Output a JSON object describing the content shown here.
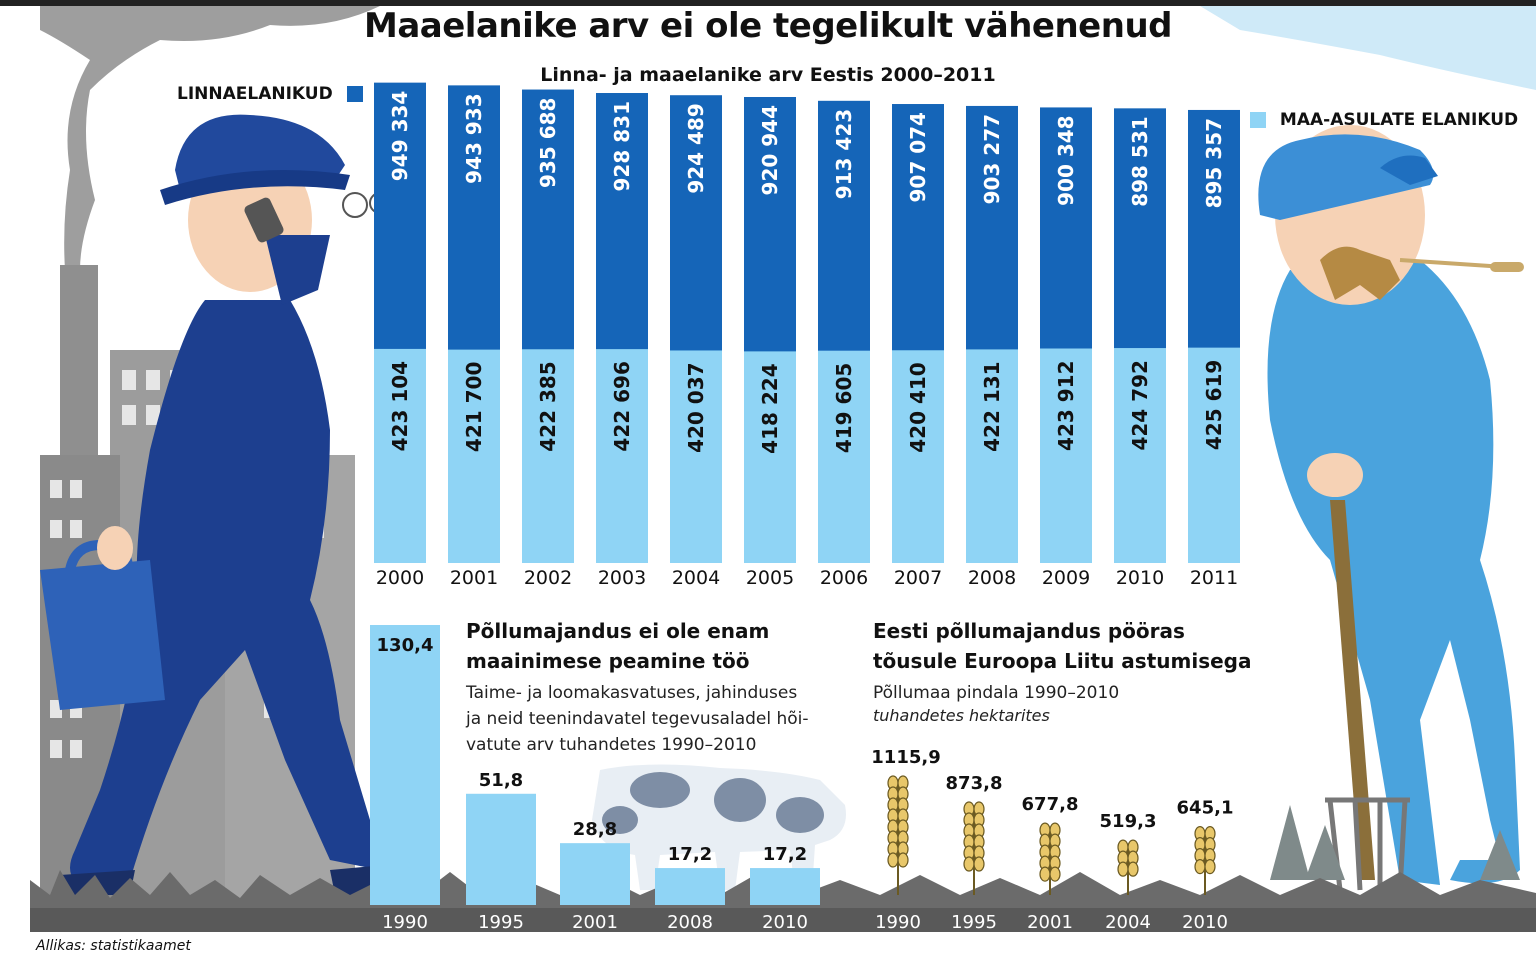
{
  "title": "Maaelanike arv ei ole tegelikult vähenenud",
  "source": "Allikas: statistikaamet",
  "colors": {
    "urban": "#1565b8",
    "rural": "#8fd4f5",
    "bar_small": "#8fd4f5",
    "ink": "#111111"
  },
  "chart_data": [
    {
      "type": "bar",
      "title": "Linna- ja maaelanike arv Eestis 2000–2011",
      "categories": [
        "2000",
        "2001",
        "2002",
        "2003",
        "2004",
        "2005",
        "2006",
        "2007",
        "2008",
        "2009",
        "2010",
        "2011"
      ],
      "series": [
        {
          "name": "LINNAELANIKUD",
          "values": [
            949334,
            943933,
            935688,
            928831,
            924489,
            920944,
            913423,
            907074,
            903277,
            900348,
            898531,
            895357
          ],
          "labels": [
            "949 334",
            "943 933",
            "935 688",
            "928 831",
            "924 489",
            "920 944",
            "913 423",
            "907 074",
            "903 277",
            "900 348",
            "898 531",
            "895 357"
          ]
        },
        {
          "name": "MAA-ASULATE ELANIKUD",
          "values": [
            423104,
            421700,
            422385,
            422696,
            420037,
            418224,
            419605,
            420410,
            422131,
            423912,
            424792,
            425619
          ],
          "labels": [
            "423 104",
            "421 700",
            "422 385",
            "422 696",
            "420 037",
            "418 224",
            "419 605",
            "420 410",
            "422 131",
            "423 912",
            "424 792",
            "425 619"
          ]
        }
      ],
      "legend": [
        "LINNAELANIKUD",
        "MAA-ASULATE ELANIKUD"
      ]
    },
    {
      "type": "bar",
      "title": "Põllumajandus ei ole enam maainimese peamine töö",
      "subtitle": "Taime- ja loomakasvatuses, jahinduses ja neid teenindavatel tegevusaladel hõivatute arv tuhandetes 1990–2010",
      "categories": [
        "1990",
        "1995",
        "2001",
        "2008",
        "2010"
      ],
      "values": [
        130.4,
        51.8,
        28.8,
        17.2,
        17.2
      ],
      "labels": [
        "130,4",
        "51,8",
        "28,8",
        "17,2",
        "17,2"
      ]
    },
    {
      "type": "bar",
      "title": "Eesti põllumajandus pööras tõusule Euroopa Liitu astumisega",
      "subtitle": "Põllumaa pindala 1990–2010",
      "unit": "tuhandetes hektarites",
      "categories": [
        "1990",
        "1995",
        "2001",
        "2004",
        "2010"
      ],
      "values": [
        1115.9,
        873.8,
        677.8,
        519.3,
        645.1
      ],
      "labels": [
        "1115,9",
        "873,8",
        "677,8",
        "519,3",
        "645,1"
      ]
    }
  ],
  "sections": {
    "employment": {
      "head1": "Põllumajandus ei ole enam",
      "head2": "maainimese peamine töö",
      "desc1": "Taime- ja loomakasvatuses, jahinduses",
      "desc2": "ja neid teenindavatel tegevusaladel hõi-",
      "desc3": "vatute arv tuhandetes 1990–2010"
    },
    "land": {
      "head1": "Eesti põllumajandus pööras",
      "head2": "tõusule Euroopa Liitu astumisega",
      "desc1": "Põllumaa pindala 1990–2010",
      "desc2": "tuhandetes hektarites"
    }
  }
}
